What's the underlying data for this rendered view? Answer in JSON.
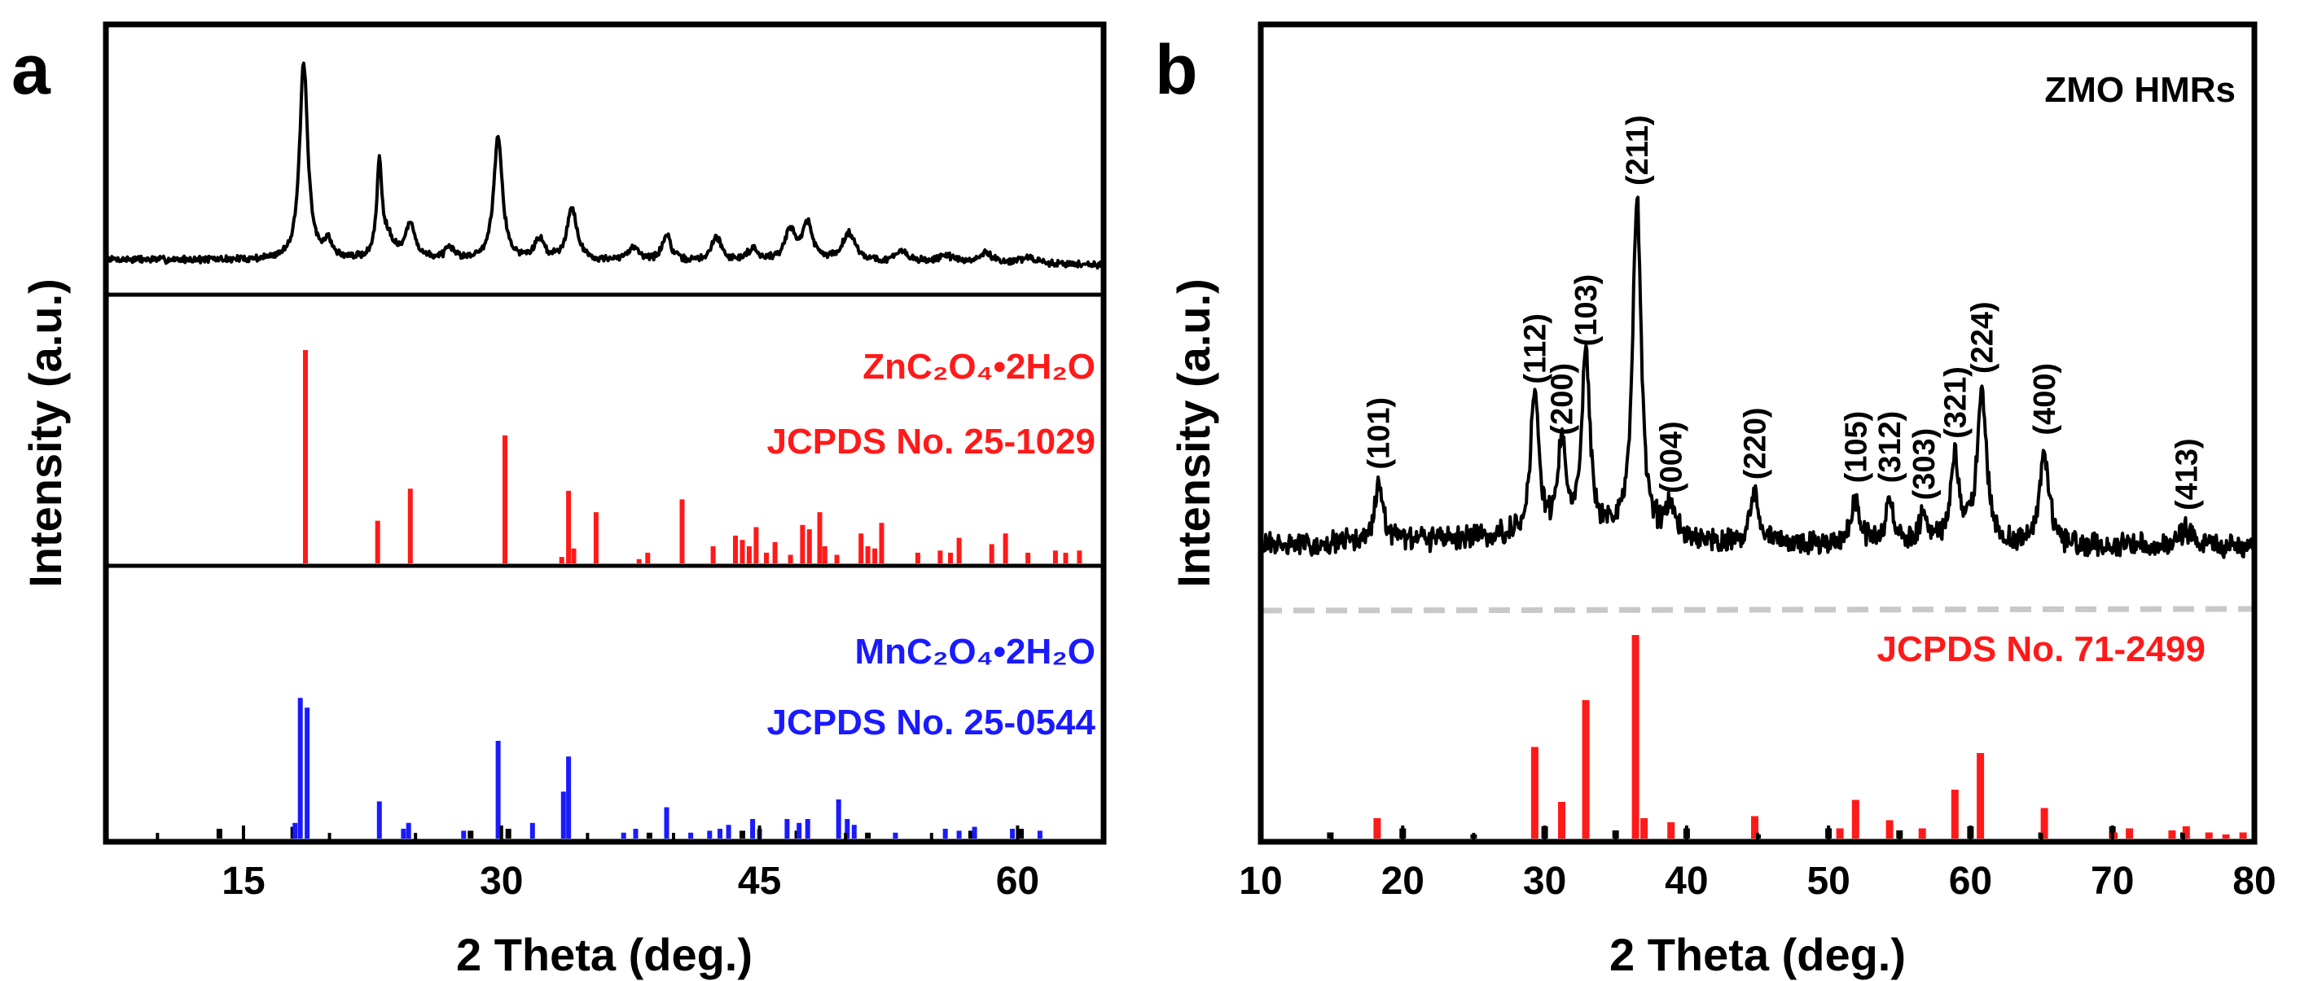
{
  "figure": {
    "panel_a_letter": "a",
    "panel_b_letter": "b"
  },
  "chart_data": [
    {
      "panel": "a",
      "type": "line",
      "xlabel": "2 Theta (deg.)",
      "ylabel": "Intensity (a.u.)",
      "xlim": [
        7,
        65
      ],
      "xticks": [
        15,
        30,
        45,
        60
      ],
      "xtick_labels": [
        "15",
        "30",
        "45",
        "60"
      ],
      "measured_peaks": [
        {
          "pos": 18.5,
          "h": 0.97,
          "w": 0.28
        },
        {
          "pos": 19.9,
          "h": 0.08,
          "w": 0.3
        },
        {
          "pos": 22.9,
          "h": 0.46,
          "w": 0.18
        },
        {
          "pos": 23.4,
          "h": 0.1,
          "w": 0.4
        },
        {
          "pos": 24.7,
          "h": 0.17,
          "w": 0.35
        },
        {
          "pos": 27.0,
          "h": 0.05,
          "w": 0.4
        },
        {
          "pos": 29.8,
          "h": 0.62,
          "w": 0.3
        },
        {
          "pos": 32.2,
          "h": 0.1,
          "w": 0.35
        },
        {
          "pos": 34.1,
          "h": 0.26,
          "w": 0.35
        },
        {
          "pos": 37.7,
          "h": 0.07,
          "w": 0.4
        },
        {
          "pos": 39.6,
          "h": 0.13,
          "w": 0.3
        },
        {
          "pos": 42.5,
          "h": 0.12,
          "w": 0.35
        },
        {
          "pos": 44.6,
          "h": 0.06,
          "w": 0.4
        },
        {
          "pos": 46.8,
          "h": 0.15,
          "w": 0.4
        },
        {
          "pos": 47.8,
          "h": 0.18,
          "w": 0.35
        },
        {
          "pos": 50.2,
          "h": 0.14,
          "w": 0.5
        },
        {
          "pos": 53.3,
          "h": 0.05,
          "w": 0.5
        },
        {
          "pos": 55.8,
          "h": 0.04,
          "w": 0.5
        },
        {
          "pos": 58.2,
          "h": 0.05,
          "w": 0.5
        },
        {
          "pos": 60.6,
          "h": 0.03,
          "w": 0.5
        }
      ],
      "ref_zn": {
        "label_line1": "ZnC₂O₄•2H₂O",
        "label_line2": "JCPDS No. 25-1029",
        "color": "#ff1a1a",
        "sticks": [
          [
            18.6,
            1.0
          ],
          [
            22.8,
            0.2
          ],
          [
            24.7,
            0.35
          ],
          [
            30.2,
            0.6
          ],
          [
            33.5,
            0.03
          ],
          [
            33.9,
            0.34
          ],
          [
            34.2,
            0.07
          ],
          [
            35.5,
            0.24
          ],
          [
            38.0,
            0.02
          ],
          [
            38.5,
            0.05
          ],
          [
            40.5,
            0.3
          ],
          [
            42.3,
            0.08
          ],
          [
            43.6,
            0.13
          ],
          [
            44.0,
            0.11
          ],
          [
            44.4,
            0.08
          ],
          [
            44.8,
            0.17
          ],
          [
            45.4,
            0.05
          ],
          [
            45.9,
            0.1
          ],
          [
            46.8,
            0.04
          ],
          [
            47.5,
            0.18
          ],
          [
            47.9,
            0.16
          ],
          [
            48.5,
            0.24
          ],
          [
            48.8,
            0.08
          ],
          [
            49.5,
            0.04
          ],
          [
            50.9,
            0.14
          ],
          [
            51.3,
            0.08
          ],
          [
            51.7,
            0.07
          ],
          [
            52.1,
            0.19
          ],
          [
            54.2,
            0.05
          ],
          [
            55.5,
            0.06
          ],
          [
            56.1,
            0.05
          ],
          [
            56.6,
            0.12
          ],
          [
            58.5,
            0.09
          ],
          [
            59.3,
            0.14
          ],
          [
            60.6,
            0.05
          ],
          [
            62.2,
            0.06
          ],
          [
            62.8,
            0.05
          ],
          [
            63.6,
            0.06
          ]
        ]
      },
      "ref_mn": {
        "label_line1": "MnC₂O₄•2H₂O",
        "label_line2": "JCPDS No. 25-0544",
        "color": "#1a1aff",
        "sticks": [
          [
            18.0,
            0.08
          ],
          [
            18.3,
            0.72
          ],
          [
            18.7,
            0.67
          ],
          [
            22.9,
            0.19
          ],
          [
            24.3,
            0.05
          ],
          [
            24.6,
            0.08
          ],
          [
            27.8,
            0.04
          ],
          [
            29.8,
            0.5
          ],
          [
            31.8,
            0.08
          ],
          [
            33.6,
            0.24
          ],
          [
            33.9,
            0.42
          ],
          [
            37.1,
            0.03
          ],
          [
            37.8,
            0.05
          ],
          [
            39.6,
            0.16
          ],
          [
            41.0,
            0.03
          ],
          [
            42.1,
            0.04
          ],
          [
            42.7,
            0.05
          ],
          [
            43.2,
            0.07
          ],
          [
            44.6,
            0.1
          ],
          [
            45.0,
            0.05
          ],
          [
            46.6,
            0.1
          ],
          [
            47.3,
            0.08
          ],
          [
            47.8,
            0.1
          ],
          [
            49.6,
            0.2
          ],
          [
            50.1,
            0.1
          ],
          [
            50.5,
            0.07
          ],
          [
            52.9,
            0.03
          ],
          [
            55.8,
            0.05
          ],
          [
            56.6,
            0.04
          ],
          [
            57.5,
            0.06
          ],
          [
            59.7,
            0.05
          ],
          [
            61.3,
            0.04
          ]
        ],
        "impurity_sticks": [
          [
            13.6,
            0.05
          ],
          [
            17.9,
            0.06
          ],
          [
            28.2,
            0.04
          ],
          [
            30.4,
            0.05
          ],
          [
            38.6,
            0.03
          ],
          [
            44.0,
            0.04
          ],
          [
            47.2,
            0.04
          ],
          [
            51.3,
            0.03
          ],
          [
            57.3,
            0.04
          ],
          [
            60.2,
            0.05
          ]
        ]
      }
    },
    {
      "panel": "b",
      "type": "line",
      "title": "ZMO HMRs",
      "xlabel": "2 Theta (deg.)",
      "ylabel": "Intensity (a.u.)",
      "xlim": [
        10,
        80
      ],
      "xticks": [
        10,
        20,
        30,
        40,
        50,
        60,
        70,
        80
      ],
      "xtick_labels": [
        "10",
        "20",
        "30",
        "40",
        "50",
        "60",
        "70",
        "80"
      ],
      "measured_peaks": [
        {
          "pos": 18.3,
          "h": 0.17,
          "w": 0.35,
          "label": "(101)"
        },
        {
          "pos": 29.3,
          "h": 0.42,
          "w": 0.35,
          "label": "(112)"
        },
        {
          "pos": 31.2,
          "h": 0.27,
          "w": 0.3,
          "label": "(200)"
        },
        {
          "pos": 32.9,
          "h": 0.53,
          "w": 0.35,
          "label": "(103)"
        },
        {
          "pos": 36.5,
          "h": 1.0,
          "w": 0.35,
          "label": "(211)"
        },
        {
          "pos": 38.9,
          "h": 0.1,
          "w": 0.4,
          "label": "(004)"
        },
        {
          "pos": 44.8,
          "h": 0.14,
          "w": 0.35,
          "label": "(220)"
        },
        {
          "pos": 51.9,
          "h": 0.13,
          "w": 0.4,
          "label": "(105)"
        },
        {
          "pos": 54.3,
          "h": 0.13,
          "w": 0.35,
          "label": "(312)"
        },
        {
          "pos": 56.7,
          "h": 0.08,
          "w": 0.4,
          "label": "(303)"
        },
        {
          "pos": 58.9,
          "h": 0.26,
          "w": 0.35,
          "label": "(321)"
        },
        {
          "pos": 60.8,
          "h": 0.45,
          "w": 0.4,
          "label": "(224)"
        },
        {
          "pos": 65.2,
          "h": 0.27,
          "w": 0.4,
          "label": "(400)"
        },
        {
          "pos": 75.2,
          "h": 0.05,
          "w": 0.6,
          "label": "(413)"
        }
      ],
      "ref": {
        "label": "JCPDS No. 71-2499",
        "color": "#ff1a1a",
        "sticks": [
          [
            18.2,
            0.1
          ],
          [
            29.3,
            0.45
          ],
          [
            31.2,
            0.18
          ],
          [
            32.9,
            0.68
          ],
          [
            36.4,
            1.0
          ],
          [
            37.0,
            0.1
          ],
          [
            38.9,
            0.08
          ],
          [
            44.8,
            0.11
          ],
          [
            50.8,
            0.05
          ],
          [
            51.9,
            0.19
          ],
          [
            54.3,
            0.09
          ],
          [
            56.6,
            0.05
          ],
          [
            58.9,
            0.24
          ],
          [
            60.7,
            0.42
          ],
          [
            65.2,
            0.15
          ],
          [
            70.1,
            0.03
          ],
          [
            71.2,
            0.05
          ],
          [
            74.2,
            0.04
          ],
          [
            75.2,
            0.06
          ],
          [
            76.8,
            0.03
          ],
          [
            78.0,
            0.02
          ],
          [
            79.2,
            0.03
          ]
        ],
        "impurity_sticks": [
          [
            14.9,
            0.03
          ],
          [
            20.0,
            0.05
          ],
          [
            25.0,
            0.02
          ],
          [
            30.0,
            0.06
          ],
          [
            35.0,
            0.04
          ],
          [
            40.0,
            0.05
          ],
          [
            45.0,
            0.02
          ],
          [
            50.0,
            0.05
          ],
          [
            55.0,
            0.04
          ],
          [
            60.0,
            0.06
          ],
          [
            65.0,
            0.03
          ],
          [
            70.0,
            0.06
          ],
          [
            75.0,
            0.03
          ]
        ]
      }
    }
  ]
}
